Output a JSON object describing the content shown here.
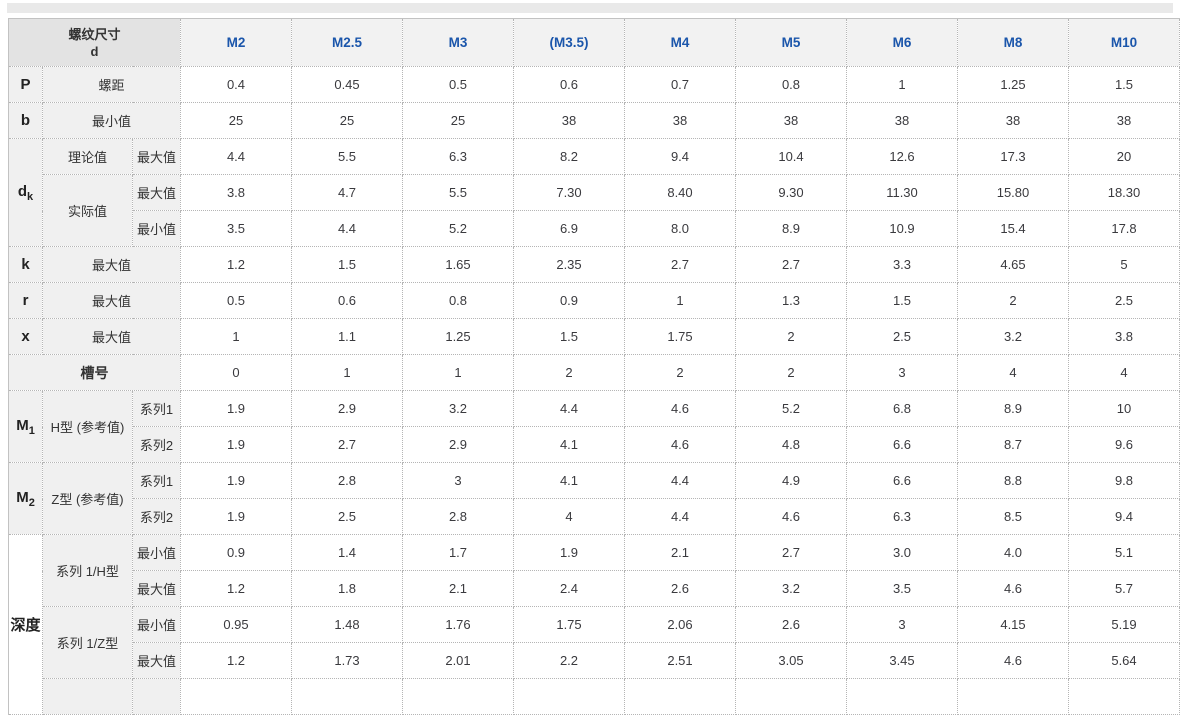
{
  "chart_data": {
    "type": "table",
    "corner_header": {
      "line1": "螺纹尺寸",
      "line2": "d"
    },
    "columns": [
      "M2",
      "M2.5",
      "M3",
      "(M3.5)",
      "M4",
      "M5",
      "M6",
      "M8",
      "M10"
    ],
    "rows": [
      {
        "labels": [
          {
            "text": "P",
            "kind": "sym"
          },
          {
            "text": "螺距",
            "cs": 2
          }
        ],
        "values": [
          "0.4",
          "0.45",
          "0.5",
          "0.6",
          "0.7",
          "0.8",
          "1",
          "1.25",
          "1.5"
        ]
      },
      {
        "labels": [
          {
            "text": "b",
            "kind": "sym"
          },
          {
            "text": "最小值",
            "cs": 2
          }
        ],
        "values": [
          "25",
          "25",
          "25",
          "38",
          "38",
          "38",
          "38",
          "38",
          "38"
        ]
      },
      {
        "labels": [
          {
            "text": "d",
            "sub": "k",
            "kind": "sym",
            "rs": 3
          },
          {
            "text": "理论值"
          },
          {
            "text": "最大值"
          }
        ],
        "values": [
          "4.4",
          "5.5",
          "6.3",
          "8.2",
          "9.4",
          "10.4",
          "12.6",
          "17.3",
          "20"
        ]
      },
      {
        "labels": [
          {
            "text": "实际值",
            "rs": 2
          },
          {
            "text": "最大值"
          }
        ],
        "values": [
          "3.8",
          "4.7",
          "5.5",
          "7.30",
          "8.40",
          "9.30",
          "11.30",
          "15.80",
          "18.30"
        ]
      },
      {
        "labels": [
          {
            "text": "最小值"
          }
        ],
        "values": [
          "3.5",
          "4.4",
          "5.2",
          "6.9",
          "8.0",
          "8.9",
          "10.9",
          "15.4",
          "17.8"
        ]
      },
      {
        "labels": [
          {
            "text": "k",
            "kind": "sym"
          },
          {
            "text": "最大值",
            "cs": 2
          }
        ],
        "values": [
          "1.2",
          "1.5",
          "1.65",
          "2.35",
          "2.7",
          "2.7",
          "3.3",
          "4.65",
          "5"
        ]
      },
      {
        "labels": [
          {
            "text": "r",
            "kind": "sym"
          },
          {
            "text": "最大值",
            "cs": 2
          }
        ],
        "values": [
          "0.5",
          "0.6",
          "0.8",
          "0.9",
          "1",
          "1.3",
          "1.5",
          "2",
          "2.5"
        ]
      },
      {
        "labels": [
          {
            "text": "x",
            "kind": "sym"
          },
          {
            "text": "最大值",
            "cs": 2
          }
        ],
        "values": [
          "1",
          "1.1",
          "1.25",
          "1.5",
          "1.75",
          "2",
          "2.5",
          "3.2",
          "3.8"
        ]
      },
      {
        "labels": [
          {
            "text": "槽号",
            "kind": "group",
            "cs": 3
          }
        ],
        "values": [
          "0",
          "1",
          "1",
          "2",
          "2",
          "2",
          "3",
          "4",
          "4"
        ]
      },
      {
        "labels": [
          {
            "text": "M",
            "sub": "1",
            "kind": "sym",
            "rs": 2
          },
          {
            "text": "H型 (参考值)",
            "rs": 2
          },
          {
            "text": "系列1"
          }
        ],
        "values": [
          "1.9",
          "2.9",
          "3.2",
          "4.4",
          "4.6",
          "5.2",
          "6.8",
          "8.9",
          "10"
        ]
      },
      {
        "labels": [
          {
            "text": "系列2"
          }
        ],
        "values": [
          "1.9",
          "2.7",
          "2.9",
          "4.1",
          "4.6",
          "4.8",
          "6.6",
          "8.7",
          "9.6"
        ]
      },
      {
        "labels": [
          {
            "text": "M",
            "sub": "2",
            "kind": "sym",
            "rs": 2
          },
          {
            "text": "Z型 (参考值)",
            "rs": 2
          },
          {
            "text": "系列1"
          }
        ],
        "values": [
          "1.9",
          "2.8",
          "3",
          "4.1",
          "4.4",
          "4.9",
          "6.6",
          "8.8",
          "9.8"
        ]
      },
      {
        "labels": [
          {
            "text": "系列2"
          }
        ],
        "values": [
          "1.9",
          "2.5",
          "2.8",
          "4",
          "4.4",
          "4.6",
          "6.3",
          "8.5",
          "9.4"
        ]
      },
      {
        "labels": [
          {
            "text": "深度",
            "kind": "depth",
            "rs": 5
          },
          {
            "text": "系列 1/H型",
            "rs": 2
          },
          {
            "text": "最小值"
          }
        ],
        "values": [
          "0.9",
          "1.4",
          "1.7",
          "1.9",
          "2.1",
          "2.7",
          "3.0",
          "4.0",
          "5.1"
        ]
      },
      {
        "labels": [
          {
            "text": "最大值"
          }
        ],
        "values": [
          "1.2",
          "1.8",
          "2.1",
          "2.4",
          "2.6",
          "3.2",
          "3.5",
          "4.6",
          "5.7"
        ]
      },
      {
        "labels": [
          {
            "text": "系列 1/Z型",
            "rs": 2
          },
          {
            "text": "最小值"
          }
        ],
        "values": [
          "0.95",
          "1.48",
          "1.76",
          "1.75",
          "2.06",
          "2.6",
          "3",
          "4.15",
          "5.19"
        ]
      },
      {
        "labels": [
          {
            "text": "最大值"
          }
        ],
        "values": [
          "1.2",
          "1.73",
          "2.01",
          "2.2",
          "2.51",
          "3.05",
          "3.45",
          "4.6",
          "5.64"
        ]
      },
      {
        "labels": [
          {
            "text": "",
            "kind": "empty"
          },
          {
            "text": "",
            "kind": "empty"
          }
        ],
        "values": [
          "",
          "",
          "",
          "",
          "",
          "",
          "",
          "",
          ""
        ]
      }
    ],
    "colors": {
      "header_text": "#1b56ab",
      "header_bg": "#f2f2f2",
      "corner_bg": "#e3e3e3",
      "label_bg": "#f0f0f0"
    }
  }
}
